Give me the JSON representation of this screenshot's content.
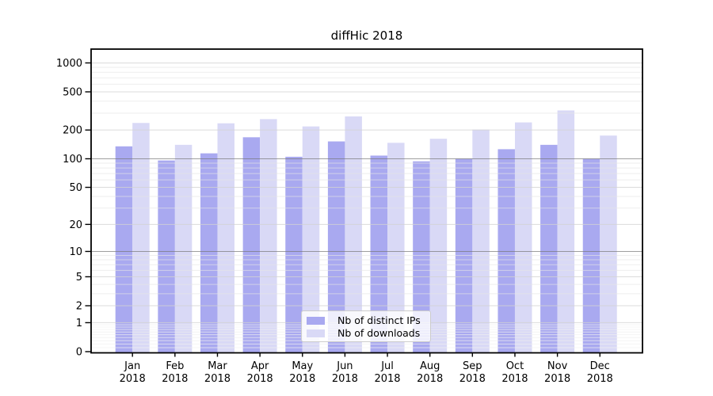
{
  "chart_data": {
    "type": "bar",
    "title": "diffHic 2018",
    "categories": [
      "Jan",
      "Feb",
      "Mar",
      "Apr",
      "May",
      "Jun",
      "Jul",
      "Aug",
      "Sep",
      "Oct",
      "Nov",
      "Dec"
    ],
    "category_year_label": "2018",
    "series": [
      {
        "name": "Nb of distinct IPs",
        "color": "#a9a9f0",
        "values": [
          135,
          96,
          114,
          168,
          105,
          152,
          108,
          94,
          100,
          126,
          140,
          100
        ]
      },
      {
        "name": "Nb of downloads",
        "color": "#d9d9f6",
        "values": [
          237,
          140,
          235,
          260,
          218,
          277,
          147,
          162,
          202,
          240,
          320,
          175
        ]
      }
    ],
    "xlabel": "",
    "ylabel": "",
    "yscale": "log1p",
    "yticks": [
      0,
      1,
      2,
      5,
      10,
      20,
      50,
      100,
      200,
      500,
      1000
    ],
    "ylim": [
      0,
      1400
    ],
    "grid": "both",
    "grid_emphasis_ticks": [
      10,
      100
    ],
    "legend_position": "lower center",
    "colors": {
      "background": "#ffffff",
      "spine": "#000000",
      "text": "#000000",
      "grid_minor": "#eeeeee",
      "grid_major": "#d9d9d9",
      "grid_emphasis": "#a0a0a0"
    }
  }
}
